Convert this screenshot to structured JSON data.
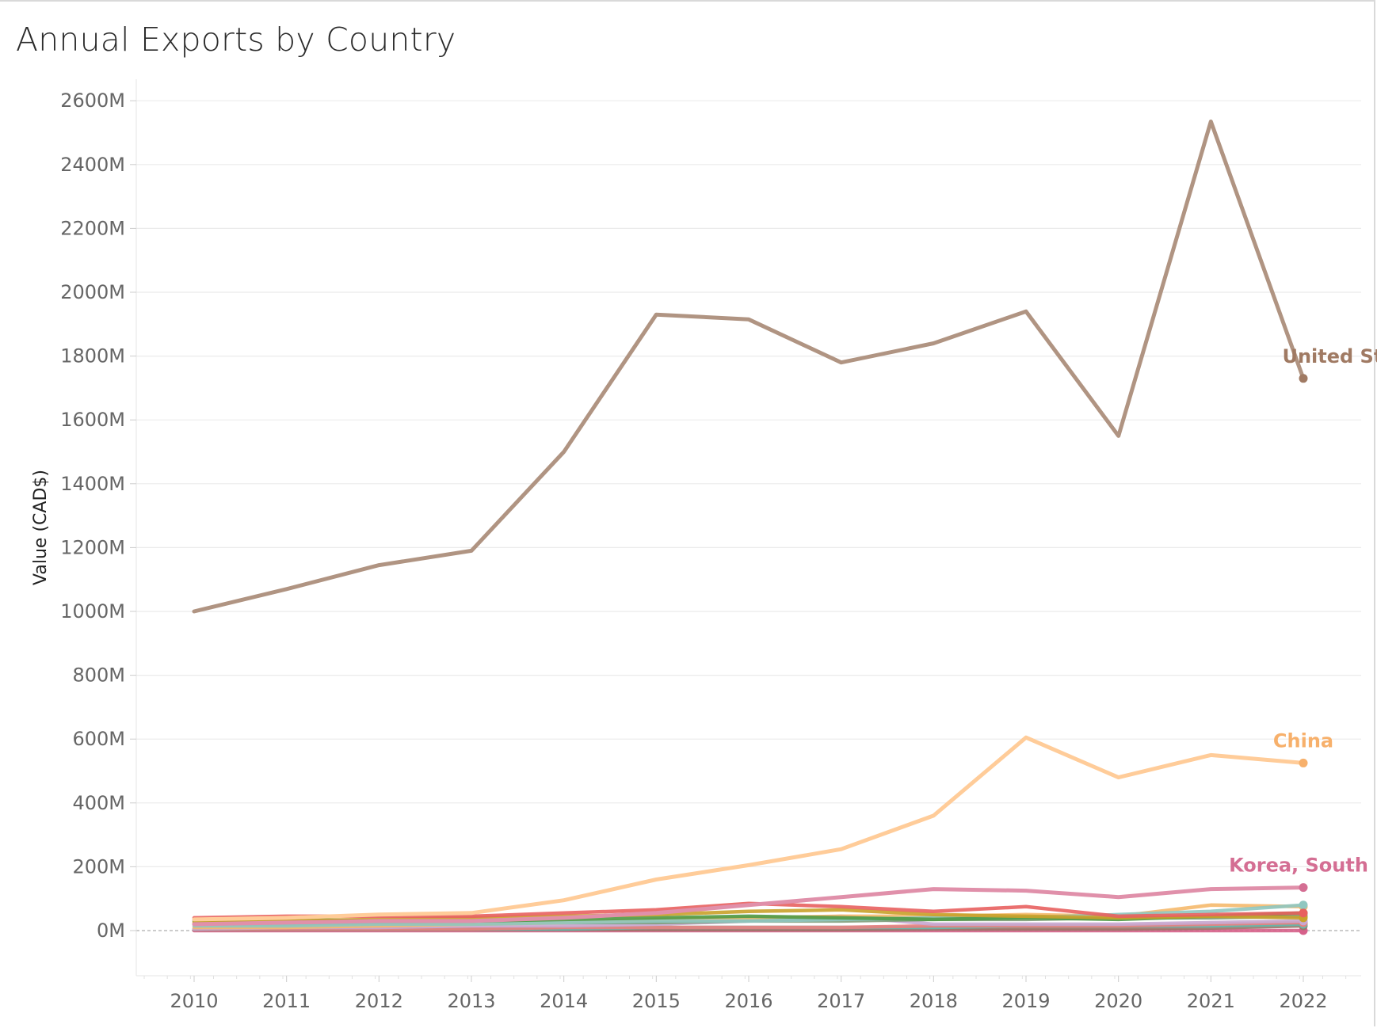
{
  "chart_data": {
    "type": "line",
    "title": "Annual Exports by Country",
    "xlabel": "",
    "ylabel": "Value (CAD$)",
    "x": [
      2010,
      2011,
      2012,
      2013,
      2014,
      2015,
      2016,
      2017,
      2018,
      2019,
      2020,
      2021,
      2022
    ],
    "ylim": [
      -130,
      2700
    ],
    "yticks": [
      0,
      200,
      400,
      600,
      800,
      1000,
      1200,
      1400,
      1600,
      1800,
      2000,
      2200,
      2400,
      2600
    ],
    "ytick_labels": [
      "0M",
      "200M",
      "400M",
      "600M",
      "800M",
      "1000M",
      "1200M",
      "1400M",
      "1600M",
      "1800M",
      "2000M",
      "2200M",
      "2400M",
      "2600M"
    ],
    "grid": true,
    "legend": "end-of-line labels",
    "series": [
      {
        "name": "United States",
        "label_visible": true,
        "color": "#b09482",
        "label_color": "#a07a63",
        "values": [
          1000,
          1070,
          1145,
          1190,
          1500,
          1930,
          1915,
          1780,
          1840,
          1940,
          1550,
          2535,
          1730
        ]
      },
      {
        "name": "China",
        "label_visible": true,
        "color": "#ffcc99",
        "label_color": "#f7b06b",
        "values": [
          35,
          40,
          50,
          55,
          95,
          160,
          205,
          255,
          360,
          605,
          480,
          550,
          525
        ]
      },
      {
        "name": "Korea, South",
        "label_visible": true,
        "color": "#e090aa",
        "label_color": "#d46e93",
        "values": [
          20,
          25,
          30,
          30,
          40,
          55,
          80,
          105,
          130,
          125,
          105,
          130,
          135
        ]
      },
      {
        "color": "#e8605f",
        "values": [
          40,
          45,
          45,
          45,
          55,
          65,
          85,
          75,
          60,
          75,
          45,
          50,
          55
        ]
      },
      {
        "color": "#c9a12a",
        "values": [
          25,
          30,
          35,
          40,
          45,
          50,
          60,
          65,
          50,
          45,
          40,
          45,
          40
        ]
      },
      {
        "color": "#4f9a45",
        "values": [
          30,
          35,
          30,
          30,
          35,
          40,
          45,
          40,
          35,
          40,
          35,
          45,
          55
        ]
      },
      {
        "color": "#8fc7c0",
        "values": [
          15,
          15,
          20,
          20,
          25,
          30,
          30,
          35,
          40,
          40,
          50,
          60,
          80
        ]
      },
      {
        "color": "#f5b96d",
        "values": [
          10,
          10,
          15,
          20,
          25,
          35,
          40,
          45,
          45,
          50,
          45,
          80,
          75
        ]
      },
      {
        "color": "#7f9f7a",
        "values": [
          20,
          20,
          20,
          25,
          25,
          25,
          30,
          30,
          35,
          35,
          40,
          40,
          45
        ]
      },
      {
        "color": "#c7a8d0",
        "values": [
          5,
          10,
          10,
          15,
          15,
          20,
          30,
          45,
          20,
          20,
          20,
          25,
          30
        ]
      },
      {
        "color": "#e97f7e",
        "values": [
          5,
          5,
          5,
          5,
          10,
          10,
          10,
          10,
          15,
          15,
          15,
          20,
          25
        ]
      },
      {
        "color": "#63b9ad",
        "values": [
          5,
          5,
          5,
          5,
          5,
          10,
          10,
          10,
          10,
          15,
          15,
          15,
          20
        ]
      },
      {
        "color": "#9b7668",
        "values": [
          3,
          3,
          3,
          3,
          3,
          3,
          3,
          3,
          5,
          5,
          5,
          8,
          15
        ]
      },
      {
        "color": "#d6608a",
        "values": [
          0,
          0,
          0,
          0,
          0,
          0,
          0,
          0,
          0,
          0,
          0,
          0,
          0
        ]
      }
    ]
  }
}
